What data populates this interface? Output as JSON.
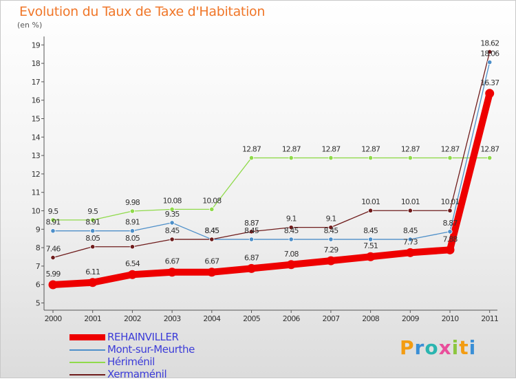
{
  "header": {
    "title": "Evolution du Taux de Taxe d'Habitation",
    "subtitle": "(en %)"
  },
  "chart_data": {
    "type": "line",
    "categories": [
      "2000",
      "2001",
      "2002",
      "2003",
      "2004",
      "2005",
      "2006",
      "2007",
      "2008",
      "2009",
      "2010",
      "2011"
    ],
    "ylim": [
      5,
      19
    ],
    "yticks": [
      5,
      6,
      7,
      8,
      9,
      10,
      11,
      12,
      13,
      14,
      15,
      16,
      17,
      18,
      19
    ],
    "grid": false,
    "legend_position": "bottom-left",
    "series": [
      {
        "name": "REHAINVILLER",
        "color": "#ee0000",
        "values": [
          5.99,
          6.11,
          6.54,
          6.67,
          6.67,
          6.87,
          7.08,
          7.29,
          7.51,
          7.73,
          7.88,
          16.37
        ],
        "labels": [
          "5.99",
          "6.11",
          "6.54",
          "6.67",
          "6.67",
          "6.87",
          "7.08",
          "7.29",
          "7.51",
          "7.73",
          "7.88",
          "16.37"
        ]
      },
      {
        "name": "Mont-sur-Meurthe",
        "color": "#4d8fc9",
        "values": [
          8.91,
          8.91,
          8.91,
          9.35,
          8.45,
          8.45,
          8.45,
          8.45,
          8.45,
          8.45,
          8.87,
          18.06
        ],
        "labels": [
          "8.91",
          "8.91",
          "8.91",
          "9.35",
          "8.45",
          "8.45",
          "8.45",
          "8.45",
          "8.45",
          "8.45",
          "8.87",
          "18.06"
        ]
      },
      {
        "name": "Hériménil",
        "color": "#8fda4a",
        "values": [
          9.5,
          9.5,
          9.98,
          10.08,
          10.08,
          12.87,
          12.87,
          12.87,
          12.87,
          12.87,
          12.87,
          12.87
        ],
        "labels": [
          "9.5",
          "9.5",
          "9.98",
          "10.08",
          "10.08",
          "12.87",
          "12.87",
          "12.87",
          "12.87",
          "12.87",
          "12.87",
          "12.87"
        ]
      },
      {
        "name": "Xermaménil",
        "color": "#6e1b1b",
        "values": [
          7.46,
          8.05,
          8.05,
          8.45,
          8.45,
          8.87,
          9.1,
          9.1,
          10.01,
          10.01,
          10.01,
          18.62
        ],
        "labels": [
          "7.46",
          "8.05",
          "8.05",
          "8.45",
          "8.45",
          "8.87",
          "9.1",
          "9.1",
          "10.01",
          "10.01",
          "10.01",
          "18.62"
        ]
      }
    ]
  },
  "legend": [
    {
      "label": "REHAINVILLER",
      "color": "#ee0000"
    },
    {
      "label": "Mont-sur-Meurthe",
      "color": "#4d8fc9"
    },
    {
      "label": "Hériménil",
      "color": "#8fda4a"
    },
    {
      "label": "Xermaménil",
      "color": "#6e1b1b"
    }
  ],
  "logo": {
    "letters": [
      "P",
      "r",
      "o",
      "x",
      "i",
      "t",
      "i"
    ],
    "colors": [
      "#f39c12",
      "#3a8fd6",
      "#2ab5b0",
      "#e94e9b",
      "#8cc63f",
      "#f39c12",
      "#3a8fd6"
    ]
  }
}
